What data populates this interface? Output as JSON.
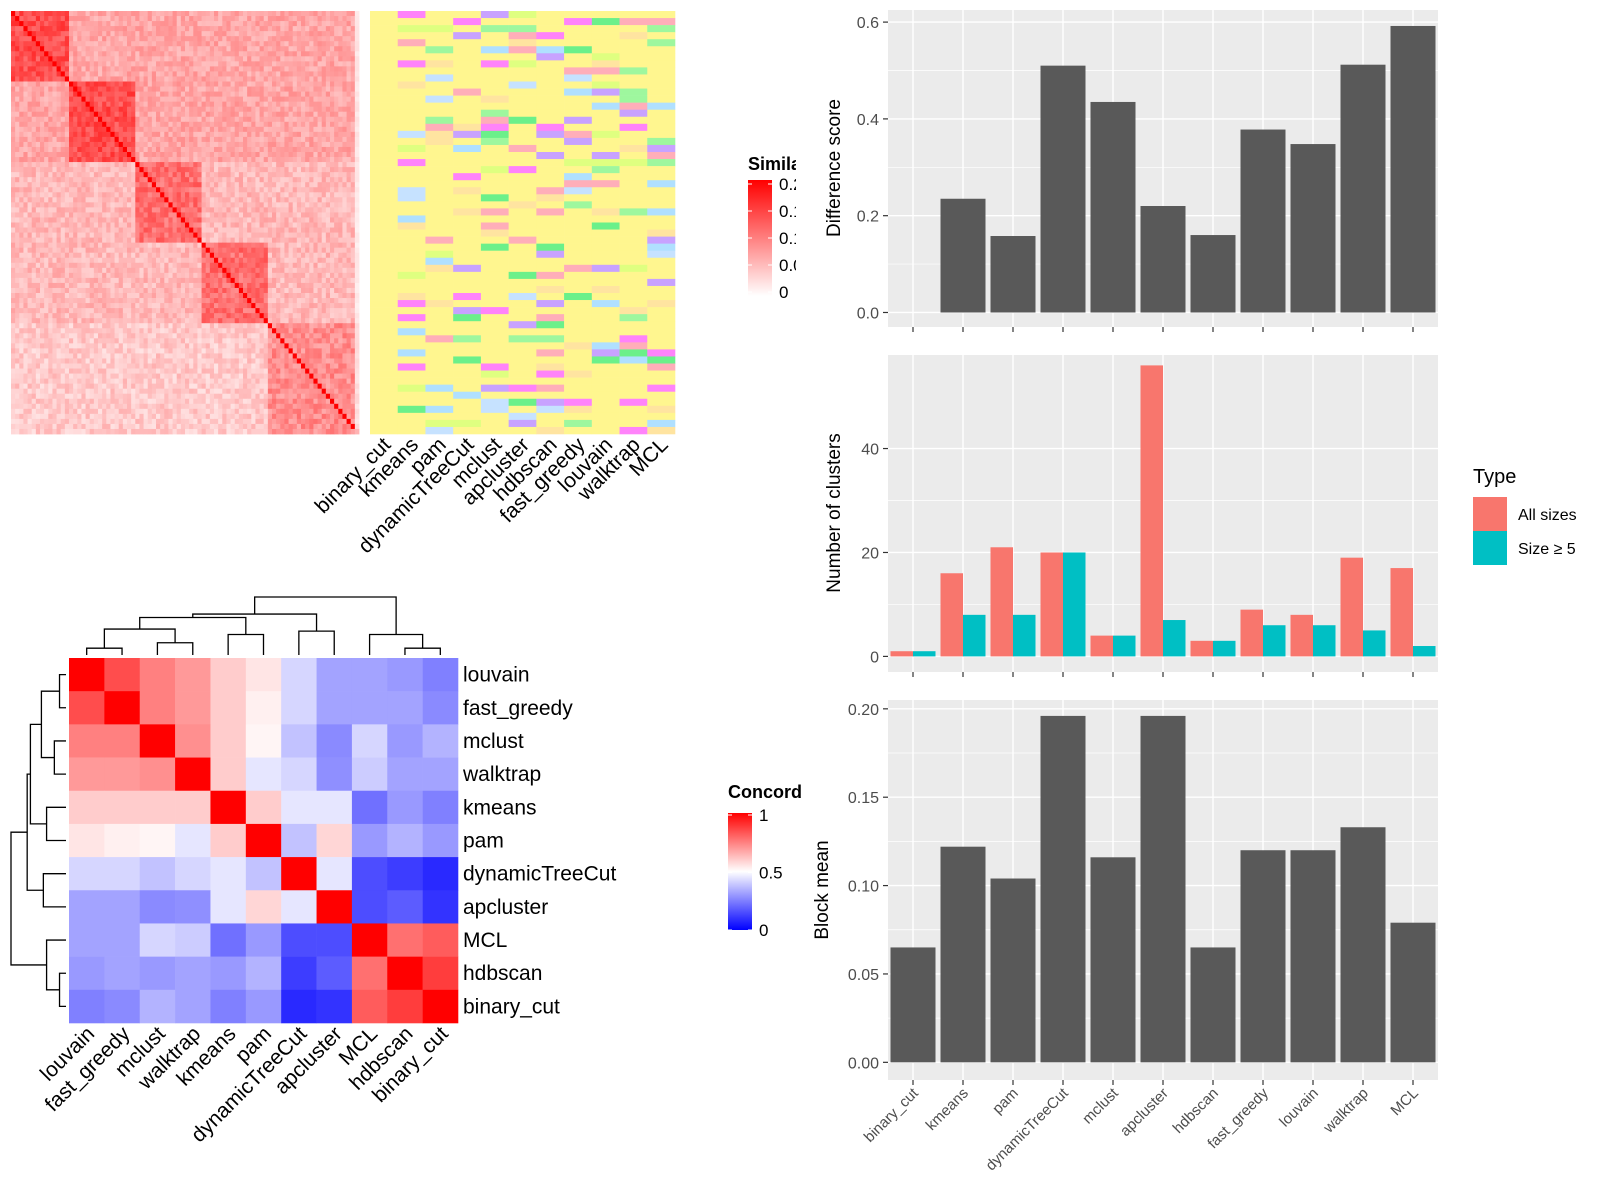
{
  "colors": {
    "heat_red": "#ff0000",
    "heat_white": "#ffffff",
    "heat_blue": "#0000ff",
    "bar_dark": "#595959",
    "panel_bg": "#ebebeb",
    "grid": "#ffffff",
    "type_all": "#f8766d",
    "type_size5": "#00bfc4"
  },
  "chart_data": [
    {
      "id": "similarity_heatmap",
      "type": "heatmap",
      "legend_title": "Simila",
      "legend_ticks": [
        "0.2",
        "0.1",
        "0.1",
        "0.0",
        "0"
      ],
      "column_labels": [
        "binary_cut",
        "kmeans",
        "pam",
        "dynamicTreeCut",
        "mclust",
        "apcluster",
        "hdbscan",
        "fast_greedy",
        "louvain",
        "walktrap",
        "MCL"
      ]
    },
    {
      "id": "concordance_heatmap",
      "type": "heatmap",
      "legend_title": "Concord",
      "legend_ticks": [
        "1",
        "0.5",
        "0"
      ],
      "labels": [
        "louvain",
        "fast_greedy",
        "mclust",
        "walktrap",
        "kmeans",
        "pam",
        "dynamicTreeCut",
        "apcluster",
        "MCL",
        "hdbscan",
        "binary_cut"
      ],
      "matrix": [
        [
          1.0,
          0.85,
          0.75,
          0.7,
          0.6,
          0.55,
          0.42,
          0.32,
          0.32,
          0.3,
          0.25
        ],
        [
          0.85,
          1.0,
          0.75,
          0.7,
          0.6,
          0.53,
          0.42,
          0.32,
          0.32,
          0.32,
          0.27
        ],
        [
          0.75,
          0.75,
          1.0,
          0.72,
          0.6,
          0.52,
          0.38,
          0.27,
          0.42,
          0.3,
          0.35
        ],
        [
          0.7,
          0.7,
          0.72,
          1.0,
          0.6,
          0.45,
          0.42,
          0.28,
          0.4,
          0.32,
          0.32
        ],
        [
          0.6,
          0.6,
          0.6,
          0.6,
          1.0,
          0.6,
          0.45,
          0.45,
          0.22,
          0.3,
          0.25
        ],
        [
          0.55,
          0.53,
          0.52,
          0.45,
          0.6,
          1.0,
          0.38,
          0.58,
          0.3,
          0.35,
          0.3
        ],
        [
          0.42,
          0.42,
          0.38,
          0.42,
          0.45,
          0.38,
          1.0,
          0.45,
          0.15,
          0.12,
          0.08
        ],
        [
          0.32,
          0.32,
          0.27,
          0.28,
          0.45,
          0.58,
          0.45,
          1.0,
          0.15,
          0.18,
          0.1
        ],
        [
          0.32,
          0.32,
          0.42,
          0.4,
          0.22,
          0.3,
          0.15,
          0.15,
          1.0,
          0.78,
          0.82
        ],
        [
          0.3,
          0.32,
          0.3,
          0.32,
          0.3,
          0.35,
          0.12,
          0.18,
          0.78,
          1.0,
          0.88
        ],
        [
          0.25,
          0.27,
          0.35,
          0.32,
          0.25,
          0.3,
          0.08,
          0.1,
          0.82,
          0.88,
          1.0
        ]
      ]
    },
    {
      "id": "difference_score",
      "type": "bar",
      "categories": [
        "binary_cut",
        "kmeans",
        "pam",
        "dynamicTreeCut",
        "mclust",
        "apcluster",
        "hdbscan",
        "fast_greedy",
        "louvain",
        "walktrap",
        "MCL"
      ],
      "values": [
        0,
        0.235,
        0.158,
        0.51,
        0.435,
        0.22,
        0.16,
        0.378,
        0.348,
        0.512,
        0.592
      ],
      "ylabel": "Difference score",
      "ylim": [
        -0.03,
        0.625
      ],
      "yticks": [
        0.0,
        0.2,
        0.4,
        0.6
      ],
      "ytick_labels": [
        "0.0",
        "0.2",
        "0.4",
        "0.6"
      ],
      "grid": true
    },
    {
      "id": "number_of_clusters",
      "type": "bar",
      "categories": [
        "binary_cut",
        "kmeans",
        "pam",
        "dynamicTreeCut",
        "mclust",
        "apcluster",
        "hdbscan",
        "fast_greedy",
        "louvain",
        "walktrap",
        "MCL"
      ],
      "series": [
        {
          "name": "All sizes",
          "values": [
            1,
            16,
            21,
            20,
            4,
            56,
            3,
            9,
            8,
            19,
            17
          ]
        },
        {
          "name": "Size ≥ 5",
          "values": [
            1,
            8,
            8,
            20,
            4,
            7,
            3,
            6,
            6,
            5,
            2
          ]
        }
      ],
      "ylabel": "Number of clusters",
      "ylim": [
        -3,
        58
      ],
      "yticks": [
        0,
        20,
        40
      ],
      "ytick_labels": [
        "0",
        "20",
        "40"
      ],
      "legend_title": "Type",
      "legend_position": "right",
      "grid": true
    },
    {
      "id": "block_mean",
      "type": "bar",
      "categories": [
        "binary_cut",
        "kmeans",
        "pam",
        "dynamicTreeCut",
        "mclust",
        "apcluster",
        "hdbscan",
        "fast_greedy",
        "louvain",
        "walktrap",
        "MCL"
      ],
      "values": [
        0.065,
        0.122,
        0.104,
        0.196,
        0.116,
        0.196,
        0.065,
        0.12,
        0.12,
        0.133,
        0.079
      ],
      "ylabel": "Block mean",
      "ylim": [
        -0.01,
        0.205
      ],
      "yticks": [
        0.0,
        0.05,
        0.1,
        0.15,
        0.2
      ],
      "ytick_labels": [
        "0.00",
        "0.05",
        "0.10",
        "0.15",
        "0.20"
      ],
      "grid": true
    }
  ]
}
